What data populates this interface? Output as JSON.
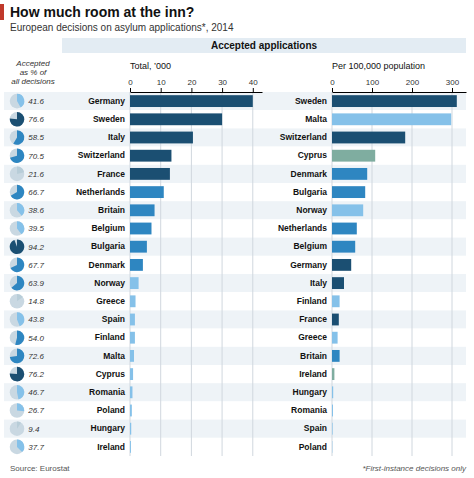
{
  "chart_data": [
    {
      "type": "pie",
      "title": "How much room at the inn?",
      "subtitle": "European decisions on asylum applications*, 2014",
      "annotations": [
        "Accepted\nas % of\nall decisions",
        "Accepted applications",
        "Source: Eurostat",
        "*First-instance decisions only"
      ],
      "values": [
        41.6,
        76.6,
        58.5,
        70.5,
        21.6,
        66.7,
        38.6,
        39.5,
        94.2,
        67.7,
        63.9,
        14.8,
        43.8,
        54.0,
        72.6,
        76.2,
        46.7,
        26.7,
        9.4,
        37.7
      ],
      "value_labels": [
        "41.6",
        "76.6",
        "58.5",
        "70.5",
        "21.6",
        "66.7",
        "38.6",
        "39.5",
        "94.2",
        "67.7",
        "63.9",
        "14.8",
        "43.8",
        "54.0",
        "72.6",
        "76.2",
        "46.7",
        "26.7",
        "9.4",
        "37.7"
      ],
      "colors": [
        "#85c1e9",
        "#1b4f72",
        "#2e86c1",
        "#2e86c1",
        "#b8cdd8",
        "#2e86c1",
        "#85c1e9",
        "#85c1e9",
        "#1b4f72",
        "#2e86c1",
        "#2e86c1",
        "#b8cdd8",
        "#85c1e9",
        "#2e86c1",
        "#2e86c1",
        "#1b4f72",
        "#85c1e9",
        "#85c1e9",
        "#b8cdd8",
        "#85c1e9"
      ],
      "data_labels": true
    },
    {
      "type": "bar",
      "orientation": "horizontal",
      "xlabel": "Total, ’000",
      "categories": [
        "Germany",
        "Sweden",
        "Italy",
        "Switzerland",
        "France",
        "Netherlands",
        "Britain",
        "Belgium",
        "Bulgaria",
        "Denmark",
        "Norway",
        "Greece",
        "Spain",
        "Finland",
        "Malta",
        "Cyprus",
        "Romania",
        "Poland",
        "Hungary",
        "Ireland"
      ],
      "values": [
        40.0,
        30.0,
        20.5,
        13.5,
        13.0,
        11.0,
        8.0,
        7.0,
        5.5,
        4.2,
        2.8,
        1.8,
        1.6,
        1.6,
        1.3,
        1.0,
        0.8,
        0.6,
        0.4,
        0.3
      ],
      "colors": [
        "#1b4f72",
        "#1b4f72",
        "#1b4f72",
        "#1b4f72",
        "#1b4f72",
        "#2e86c1",
        "#2e86c1",
        "#2e86c1",
        "#2e86c1",
        "#2e86c1",
        "#85c1e9",
        "#85c1e9",
        "#85c1e9",
        "#85c1e9",
        "#85c1e9",
        "#85c1e9",
        "#85c1e9",
        "#85c1e9",
        "#85c1e9",
        "#85c1e9"
      ],
      "xlim": [
        0,
        43
      ],
      "xticks": [
        0,
        10,
        20,
        30,
        40
      ],
      "grid": true
    },
    {
      "type": "bar",
      "orientation": "horizontal",
      "xlabel": "Per 100,000 population",
      "categories": [
        "Sweden",
        "Malta",
        "Switzerland",
        "Cyprus",
        "Denmark",
        "Bulgaria",
        "Norway",
        "Netherlands",
        "Belgium",
        "Germany",
        "Italy",
        "Finland",
        "France",
        "Greece",
        "Britain",
        "Ireland",
        "Hungary",
        "Romania",
        "Spain",
        "Poland"
      ],
      "values": [
        312.0,
        298.0,
        183.0,
        108.0,
        88.0,
        83.0,
        78.0,
        62.0,
        58.0,
        48.0,
        30.0,
        19.0,
        17.0,
        14.0,
        19.0,
        6.0,
        3.0,
        2.5,
        1.5,
        0.8
      ],
      "colors": [
        "#1b4f72",
        "#85c1e9",
        "#1b4f72",
        "#7fada0",
        "#2e86c1",
        "#2e86c1",
        "#85c1e9",
        "#2e86c1",
        "#2e86c1",
        "#1b4f72",
        "#1b4f72",
        "#85c1e9",
        "#1b4f72",
        "#85c1e9",
        "#2e86c1",
        "#7fada0",
        "#85c1e9",
        "#85c1e9",
        "#85c1e9",
        "#85c1e9"
      ],
      "xlim": [
        0,
        335
      ],
      "xticks": [
        0,
        100,
        200,
        300
      ],
      "grid": true
    }
  ]
}
